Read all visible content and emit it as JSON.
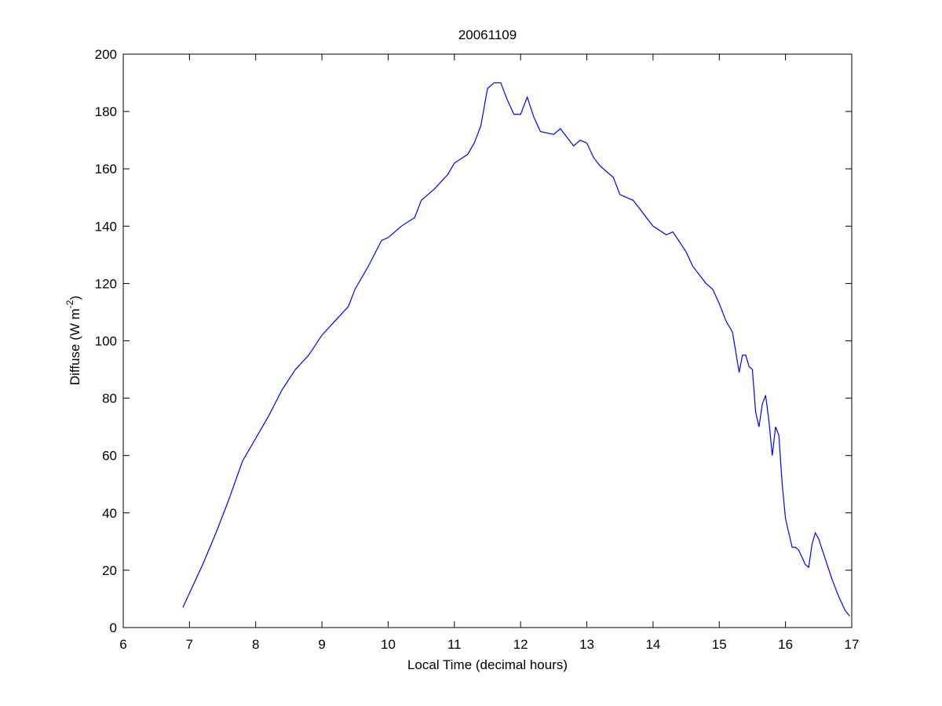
{
  "chart_data": {
    "type": "line",
    "title": "20061109",
    "x_label": "Local Time (decimal hours)",
    "y_label": {
      "text": "Diffuse (W m",
      "sup": "-2",
      "tail": ")"
    },
    "x": [
      6.9,
      7.0,
      7.2,
      7.4,
      7.6,
      7.8,
      8.0,
      8.2,
      8.4,
      8.6,
      8.8,
      9.0,
      9.2,
      9.4,
      9.5,
      9.7,
      9.9,
      10.0,
      10.2,
      10.4,
      10.5,
      10.7,
      10.9,
      11.0,
      11.2,
      11.3,
      11.4,
      11.5,
      11.6,
      11.7,
      11.8,
      11.9,
      12.0,
      12.1,
      12.2,
      12.3,
      12.5,
      12.6,
      12.8,
      12.9,
      13.0,
      13.1,
      13.2,
      13.4,
      13.5,
      13.7,
      13.9,
      14.0,
      14.2,
      14.3,
      14.5,
      14.6,
      14.8,
      14.9,
      15.0,
      15.1,
      15.2,
      15.3,
      15.35,
      15.4,
      15.45,
      15.5,
      15.55,
      15.6,
      15.65,
      15.7,
      15.75,
      15.8,
      15.85,
      15.9,
      15.95,
      16.0,
      16.05,
      16.1,
      16.15,
      16.2,
      16.3,
      16.35,
      16.4,
      16.45,
      16.5,
      16.6,
      16.7,
      16.8,
      16.9,
      16.97
    ],
    "series": [
      {
        "color": "#0000ff",
        "values": [
          7,
          12,
          22,
          33,
          45,
          58,
          66,
          74,
          83,
          90,
          95,
          102,
          107,
          112,
          118,
          126,
          135,
          136,
          140,
          143,
          149,
          153,
          158,
          162,
          165,
          169,
          175,
          188,
          190,
          190,
          184,
          179,
          179,
          185,
          178,
          173,
          172,
          174,
          168,
          170,
          169,
          164,
          161,
          157,
          151,
          149,
          143,
          140,
          137,
          138,
          131,
          126,
          120,
          118,
          113,
          107,
          103,
          89,
          95,
          95,
          91,
          90,
          75,
          70,
          78,
          81,
          72,
          60,
          70,
          67,
          50,
          38,
          33,
          28,
          28,
          27,
          22,
          21,
          29,
          33,
          31,
          24,
          17,
          11,
          6,
          4
        ]
      }
    ],
    "xlim": [
      6,
      17
    ],
    "xticks": [
      6,
      7,
      8,
      9,
      10,
      11,
      12,
      13,
      14,
      15,
      16,
      17
    ],
    "ylim": [
      0,
      200
    ],
    "yticks": [
      0,
      20,
      40,
      60,
      80,
      100,
      120,
      140,
      160,
      180,
      200
    ]
  }
}
